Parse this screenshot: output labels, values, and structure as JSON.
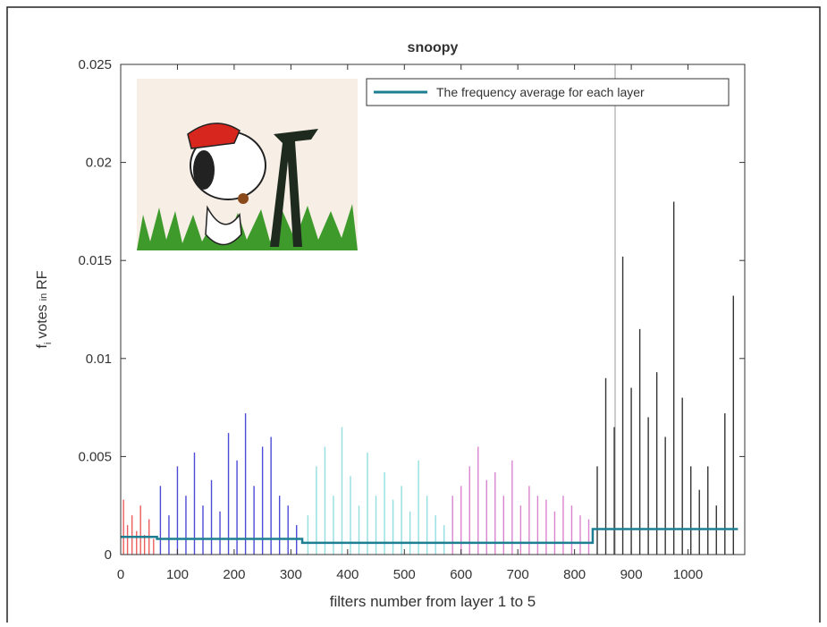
{
  "chart_data": {
    "type": "stem",
    "title": "snoopy",
    "xlabel": "filters number from layer 1 to 5",
    "ylabel_parts": [
      "f",
      "i",
      "votes",
      "in",
      "RF"
    ],
    "xlim": [
      0,
      1100
    ],
    "ylim": [
      0,
      0.025
    ],
    "xticks": [
      0,
      100,
      200,
      300,
      400,
      500,
      600,
      700,
      800,
      900,
      1000
    ],
    "yticks": [
      0,
      0.005,
      0.01,
      0.015,
      0.02,
      0.025
    ],
    "legend_position": "top-right",
    "series": [
      {
        "type": "stem",
        "color": "#e8423f",
        "x": [
          5,
          12,
          20,
          28,
          35,
          42,
          50,
          58
        ],
        "values": [
          0.0028,
          0.0015,
          0.002,
          0.0012,
          0.0025,
          0.001,
          0.0018,
          0.0008
        ]
      },
      {
        "type": "stem",
        "color": "#2b2bd0",
        "x": [
          70,
          85,
          100,
          115,
          130,
          145,
          160,
          175,
          190,
          205,
          220,
          235,
          250,
          265,
          280,
          295,
          310
        ],
        "values": [
          0.0035,
          0.002,
          0.0045,
          0.003,
          0.0052,
          0.0025,
          0.0038,
          0.0022,
          0.0062,
          0.0048,
          0.0072,
          0.0035,
          0.0055,
          0.006,
          0.003,
          0.0025,
          0.0015
        ]
      },
      {
        "type": "stem",
        "color": "#7fd8dc",
        "x": [
          330,
          345,
          360,
          375,
          390,
          405,
          420,
          435,
          450,
          465,
          480,
          495,
          510,
          525,
          540,
          555,
          570
        ],
        "values": [
          0.002,
          0.0045,
          0.0055,
          0.003,
          0.0065,
          0.004,
          0.0025,
          0.0052,
          0.003,
          0.0042,
          0.0028,
          0.0035,
          0.0022,
          0.0048,
          0.003,
          0.002,
          0.0015
        ]
      },
      {
        "type": "stem",
        "color": "#d46fc8",
        "x": [
          585,
          600,
          615,
          630,
          645,
          660,
          675,
          690,
          705,
          720,
          735,
          750,
          765,
          780,
          795,
          810,
          825
        ],
        "values": [
          0.003,
          0.0035,
          0.0045,
          0.0055,
          0.0038,
          0.0042,
          0.003,
          0.0048,
          0.0025,
          0.0035,
          0.003,
          0.0028,
          0.0022,
          0.003,
          0.0025,
          0.002,
          0.0018
        ]
      },
      {
        "type": "stem",
        "color": "#111111",
        "x": [
          840,
          855,
          870,
          885,
          900,
          915,
          930,
          945,
          960,
          975,
          990,
          1005,
          1020,
          1035,
          1050,
          1065,
          1080
        ],
        "values": [
          0.0045,
          0.009,
          0.0065,
          0.0152,
          0.0085,
          0.0115,
          0.007,
          0.0093,
          0.006,
          0.018,
          0.008,
          0.0045,
          0.0033,
          0.0045,
          0.0025,
          0.0072,
          0.0132
        ]
      },
      {
        "type": "line",
        "name": "The frequency average for each layer",
        "color": "#1f7f92",
        "x": [
          0,
          64,
          64,
          320,
          320,
          576,
          576,
          832,
          832,
          1088
        ],
        "values": [
          0.0009,
          0.0009,
          0.0008,
          0.0008,
          0.0006,
          0.0006,
          0.0006,
          0.0006,
          0.0013,
          0.0013
        ]
      }
    ]
  }
}
